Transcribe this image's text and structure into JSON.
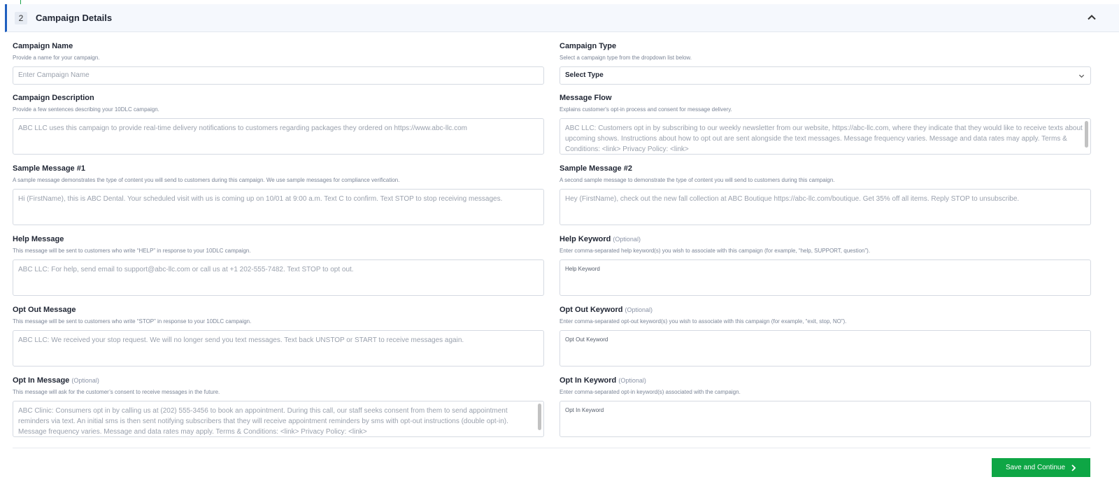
{
  "section": {
    "number": "2",
    "title": "Campaign Details",
    "collapse_icon": "chevron-up-icon"
  },
  "optional_tag": "(Optional)",
  "left": [
    {
      "label": "Campaign Name",
      "help": "Provide a name for your campaign.",
      "placeholder": "Enter Campaign Name"
    },
    {
      "label": "Campaign Description",
      "help": "Provide a few sentences describing your 10DLC campaign.",
      "value": "ABC LLC uses this campaign to provide real-time delivery notifications to customers regarding packages they ordered on https://www.abc-llc.com"
    },
    {
      "label": "Sample Message #1",
      "help": "A sample message demonstrates the type of content you will send to customers during this campaign. We use sample messages for compliance verification.",
      "value": "Hi (FirstName), this is ABC Dental. Your scheduled visit with us is coming up on 10/01 at 9:00 a.m. Text C to confirm. Text STOP to stop receiving messages."
    },
    {
      "label": "Help Message",
      "help": "This message will be sent to customers who write “HELP” in response to your 10DLC campaign.",
      "value": "ABC LLC: For help, send email to support@abc-llc.com or call us at +1 202-555-7482. Text STOP to opt out."
    },
    {
      "label": "Opt Out Message",
      "help": "This message will be sent to customers who write “STOP” in response to your 10DLC campaign.",
      "value": "ABC LLC: We received your stop request. We will no longer send you text messages. Text back UNSTOP or START to receive messages again."
    },
    {
      "label": "Opt In Message",
      "help": "This message will ask for the customer’s consent to receive messages in the future.",
      "value": "ABC Clinic: Consumers opt in by calling us at (202) 555-3456 to book an appointment. During this call, our staff seeks consent from them to send appointment reminders via text. An initial sms is then sent notifying subscribers that they will receive appointment reminders by sms with opt-out instructions (double opt-in). Message frequency varies. Message and data rates may apply. Terms & Conditions: <link> Privacy Policy: <link>"
    }
  ],
  "right": [
    {
      "label": "Campaign Type",
      "help": "Select a campaign type from the dropdown list below.",
      "value": "Select Type"
    },
    {
      "label": "Message Flow",
      "help": "Explains customer's opt-in process and consent for message delivery.",
      "value": "ABC LLC: Customers opt in by subscribing to our weekly newsletter from our website, https://abc-llc.com, where they indicate that they would like to receive texts about upcoming shows. Instructions about how to opt out are sent alongside the text messages. Message frequency varies. Message and data rates may apply. Terms & Conditions: <link> Privacy Policy: <link>"
    },
    {
      "label": "Sample Message #2",
      "help": "A second sample message to demonstrate the type of content you will send to customers during this campaign.",
      "value": "Hey (FirstName), check out the new fall collection at ABC Boutique https://abc-llc.com/boutique. Get 35% off all items. Reply STOP to unsubscribe."
    },
    {
      "label": "Help Keyword",
      "help": "Enter comma-separated help keyword(s) you wish to associate with this campaign (for example, “help, SUPPORT, question”).",
      "placeholder": "Help Keyword"
    },
    {
      "label": "Opt Out Keyword",
      "help": "Enter comma-separated opt-out keyword(s) you wish to associate with this campaign (for example, “exit, stop, NO”).",
      "placeholder": "Opt Out Keyword"
    },
    {
      "label": "Opt In Keyword",
      "help": "Enter comma-separated opt-in keyword(s) associated with the campaign.",
      "placeholder": "Opt In Keyword"
    }
  ],
  "actions": {
    "save_label": "Save and Continue"
  },
  "colors": {
    "accent": "#1f5fbf",
    "primary_button": "#0ea645"
  }
}
